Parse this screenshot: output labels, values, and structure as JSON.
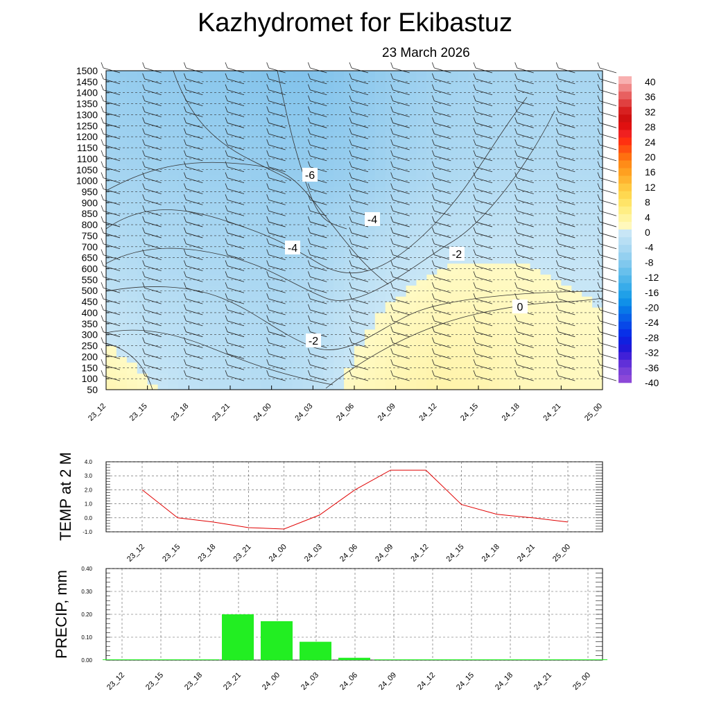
{
  "title": "Kazhydromet  for Ekibastuz",
  "subtitle": "23 March 2026",
  "time_labels": [
    "23_12",
    "23_15",
    "23_18",
    "23_21",
    "24_00",
    "24_03",
    "24_06",
    "24_09",
    "24_12",
    "24_15",
    "24_18",
    "24_21",
    "25_00"
  ],
  "chart_data": [
    {
      "type": "heatmap",
      "description_key": "temperature cross-section with contours and wind barbs",
      "x_labels": [
        "23_12",
        "23_15",
        "23_18",
        "23_21",
        "24_00",
        "24_03",
        "24_06",
        "24_09",
        "24_12",
        "24_15",
        "24_18",
        "24_21",
        "25_00"
      ],
      "y_labels": [
        "50",
        "100",
        "150",
        "200",
        "250",
        "300",
        "350",
        "400",
        "450",
        "500",
        "550",
        "600",
        "650",
        "700",
        "750",
        "800",
        "850",
        "900",
        "950",
        "1000",
        "1050",
        "1100",
        "1150",
        "1200",
        "1250",
        "1300",
        "1350",
        "1400",
        "1450",
        "1500"
      ],
      "y_range": [
        50,
        1500
      ],
      "contour_labels": [
        "-6",
        "-4",
        "-4",
        "-2",
        "-2",
        "0"
      ],
      "colorbar_labels": [
        "40",
        "36",
        "32",
        "28",
        "24",
        "20",
        "16",
        "12",
        "8",
        "4",
        "0",
        "-4",
        "-8",
        "-12",
        "-16",
        "-20",
        "-24",
        "-28",
        "-32",
        "-36",
        "-40"
      ],
      "colorbar_colors": {
        "warm_top": "#f4a0a0",
        "red": "#e01010",
        "orange": "#f8a020",
        "yellow": "#fff8a8",
        "light_blue": "#c8e6f6",
        "sky_blue": "#7cc4ec",
        "blue": "#1060e0",
        "violet": "#9050d8"
      },
      "temperature_grid": [
        [
          1.5,
          0.2,
          -0.8,
          -1.5,
          -2.0,
          -1.2,
          0.5,
          1.5,
          2.3,
          2.0,
          1.0,
          0.6,
          0.3
        ],
        [
          0.4,
          -0.6,
          -1.2,
          -1.8,
          -2.2,
          -1.5,
          0.0,
          1.0,
          1.7,
          1.5,
          0.8,
          0.4,
          0.2
        ],
        [
          -0.6,
          -1.3,
          -1.8,
          -2.2,
          -2.6,
          -2.0,
          -0.6,
          0.3,
          0.9,
          0.9,
          0.5,
          0.2,
          0.0
        ],
        [
          -1.5,
          -2.1,
          -2.5,
          -2.9,
          -3.2,
          -2.7,
          -1.5,
          -0.6,
          0.0,
          0.2,
          0.1,
          -0.1,
          -0.2
        ],
        [
          -2.4,
          -2.9,
          -3.2,
          -3.6,
          -3.9,
          -3.7,
          -2.8,
          -1.8,
          -1.2,
          -0.9,
          -0.8,
          -0.9,
          -1.0
        ],
        [
          -3.3,
          -3.6,
          -4.0,
          -4.4,
          -4.9,
          -5.0,
          -4.5,
          -3.3,
          -2.6,
          -2.2,
          -2.0,
          -2.0,
          -2.1
        ],
        [
          -4.2,
          -4.5,
          -4.9,
          -5.3,
          -5.8,
          -6.0,
          -5.4,
          -4.2,
          -3.4,
          -3.0,
          -2.8,
          -2.7,
          -2.8
        ],
        [
          -5.0,
          -5.4,
          -5.8,
          -6.3,
          -6.9,
          -7.0,
          -6.0,
          -4.9,
          -4.0,
          -3.5,
          -3.3,
          -3.2,
          -3.3
        ]
      ],
      "temperature_levels": [
        50,
        200,
        400,
        600,
        800,
        1000,
        1250,
        1500
      ]
    },
    {
      "type": "line",
      "ylabel": "TEMP at 2 M",
      "x": [
        "23_12",
        "23_15",
        "23_18",
        "23_21",
        "24_00",
        "24_03",
        "24_06",
        "24_09",
        "24_12",
        "24_15",
        "24_18",
        "24_21",
        "25_00"
      ],
      "values": [
        2.0,
        0.0,
        -0.3,
        -0.7,
        -0.8,
        0.2,
        2.0,
        3.4,
        3.4,
        0.95,
        0.25,
        0.0,
        -0.3
      ],
      "ylim": [
        -1.0,
        4.0
      ],
      "y_ticks": [
        "-1.0",
        "0.0",
        "1.0",
        "2.0",
        "3.0",
        "4.0"
      ],
      "line_color": "#e00000",
      "grid": true
    },
    {
      "type": "bar",
      "ylabel": "PRECIP, mm",
      "categories": [
        "23_12",
        "23_15",
        "23_18",
        "23_21",
        "24_00",
        "24_03",
        "24_06",
        "24_09",
        "24_12",
        "24_15",
        "24_18",
        "24_21",
        "25_00"
      ],
      "values": [
        0.0,
        0.0,
        0.0,
        0.2,
        0.17,
        0.08,
        0.01,
        0.0,
        0.0,
        0.0,
        0.0,
        0.0,
        0.0
      ],
      "ylim": [
        0.0,
        0.4
      ],
      "y_ticks": [
        "0.00",
        "0.10",
        "0.20",
        "0.30",
        "0.40"
      ],
      "bar_color": "#22ee22",
      "grid": true
    }
  ]
}
